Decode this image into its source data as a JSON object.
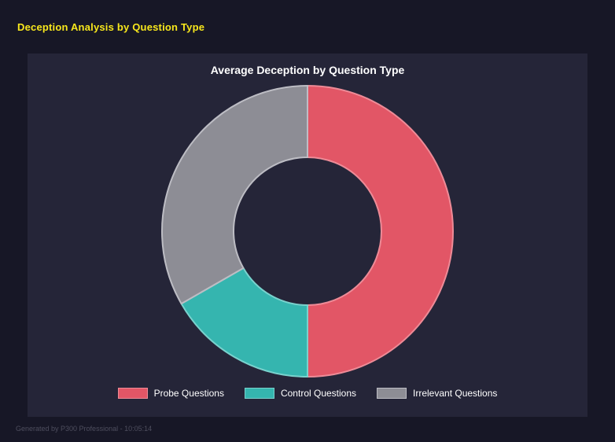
{
  "page": {
    "title": "Deception Analysis by Question Type",
    "footer": "Generated by P300 Professional - 10:05:14"
  },
  "theme": {
    "page_bg": "#171726",
    "panel_bg": "#252538",
    "title_color": "#f8e71c",
    "chart_title_color": "#ffffff",
    "legend_text_color": "#ffffff",
    "footer_color": "#4e4e5e"
  },
  "chart_data": {
    "type": "pie",
    "variant": "donut",
    "title": "Average Deception by Question Type",
    "labels": [
      "Probe Questions",
      "Control Questions",
      "Irrelevant Questions"
    ],
    "values": [
      50,
      16.7,
      33.3
    ],
    "unit": "percent_of_circle",
    "colors": [
      "#e25666",
      "#35b5af",
      "#8d8d95"
    ],
    "border_colors": [
      "#ee8b97",
      "#79d2cd",
      "#bdbdc4"
    ],
    "start_angle": "top",
    "direction": "clockwise",
    "inner_radius_ratio": 0.51,
    "legend_position": "bottom"
  }
}
